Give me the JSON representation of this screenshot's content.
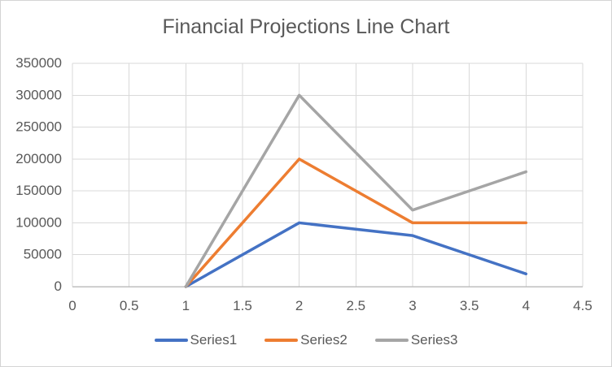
{
  "chart": {
    "colors": {
      "grid": "#d9d9d9",
      "axis_line": "#bfbfbf",
      "text": "#595959",
      "background": "#ffffff",
      "frame_border": "#d4d4d4"
    }
  },
  "chart_data": {
    "type": "line",
    "title": "Financial Projections Line Chart",
    "x": [
      1,
      2,
      3,
      4
    ],
    "series": [
      {
        "name": "Series1",
        "color": "#4472c4",
        "values": [
          0,
          100000,
          80000,
          20000
        ]
      },
      {
        "name": "Series2",
        "color": "#ed7d31",
        "values": [
          0,
          200000,
          100000,
          100000
        ]
      },
      {
        "name": "Series3",
        "color": "#a5a5a5",
        "values": [
          0,
          300000,
          120000,
          180000
        ]
      }
    ],
    "xlim": [
      0,
      4.5
    ],
    "ylim": [
      0,
      350000
    ],
    "x_ticks": [
      0,
      0.5,
      1,
      1.5,
      2,
      2.5,
      3,
      3.5,
      4,
      4.5
    ],
    "x_tick_labels": [
      "0",
      "0.5",
      "1",
      "1.5",
      "2",
      "2.5",
      "3",
      "3.5",
      "4",
      "4.5"
    ],
    "y_ticks": [
      0,
      50000,
      100000,
      150000,
      200000,
      250000,
      300000,
      350000
    ],
    "y_tick_labels": [
      "0",
      "50000",
      "100000",
      "150000",
      "200000",
      "250000",
      "300000",
      "350000"
    ],
    "grid": true,
    "legend_position": "bottom",
    "legend_labels": [
      "Series1",
      "Series2",
      "Series3"
    ]
  }
}
